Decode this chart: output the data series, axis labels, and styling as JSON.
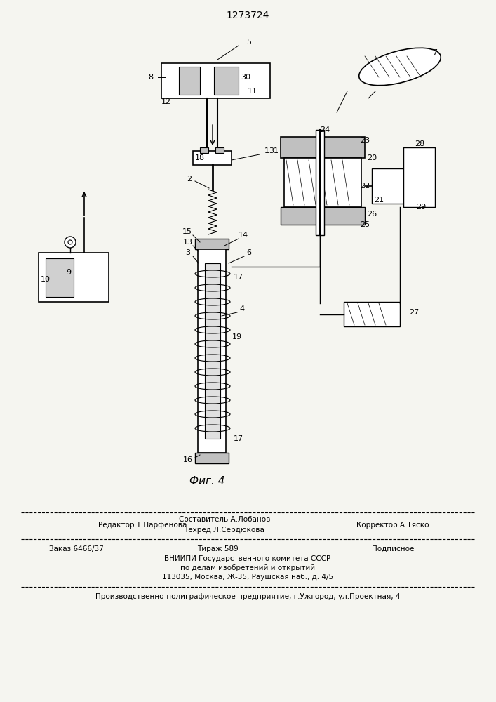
{
  "patent_number": "1273724",
  "fig_label": "Фиг. 4",
  "bg_color": "#f5f5f0",
  "line_color": "#000000",
  "footer_line1_left": "Редактор Т.Парфенова",
  "footer_line1_center_top": "Составитель А.Лобанов",
  "footer_line1_center_bot": "Техред Л.Сердюкова",
  "footer_line1_right": "Корректор А.Тяско",
  "footer_line2_left": "Заказ 6466/37",
  "footer_line2_center": "Тираж 589",
  "footer_line2_right": "Подписное",
  "footer_line3": "ВНИИПИ Государственного комитета СССР",
  "footer_line4": "по делам изобретений и открытий",
  "footer_line5": "113035, Москва, Ж-35, Раушская наб., д. 4/5",
  "footer_bottom": "Производственно-полиграфическое предприятие, г.Ужгород, ул.Проектная, 4",
  "font_size_main": 8,
  "font_size_patent": 9,
  "font_size_fig": 10
}
